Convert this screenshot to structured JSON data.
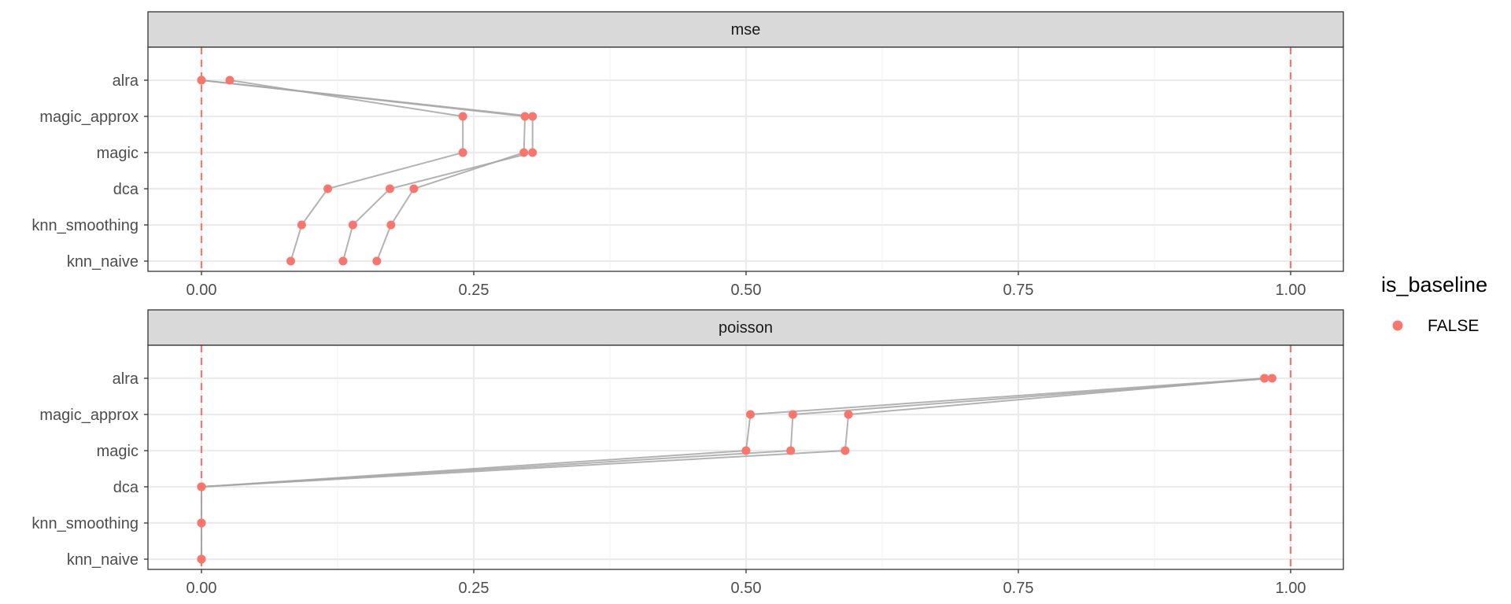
{
  "chart_data": {
    "type": "scatter",
    "title": "",
    "xlabel": "",
    "ylabel": "",
    "xlim": [
      -0.05,
      1.05
    ],
    "x_ticks": [
      "0.00",
      "0.25",
      "0.50",
      "0.75",
      "1.00"
    ],
    "x_tick_values": [
      0,
      0.25,
      0.5,
      0.75,
      1.0
    ],
    "reference_lines_x": [
      0,
      1
    ],
    "grid": true,
    "categories": [
      "alra",
      "magic_approx",
      "magic",
      "dca",
      "knn_smoothing",
      "knn_naive"
    ],
    "legend": {
      "title": "is_baseline",
      "placement": "right",
      "entries": [
        {
          "label": "FALSE",
          "color": "#F8766D"
        }
      ]
    },
    "colors": {
      "point": "#F8766D",
      "line": "#a6a6a6",
      "line_dark": "#6b6b6b",
      "ref_line": "#F8766D",
      "strip_bg": "#d9d9d9",
      "grid": "#ebebeb"
    },
    "panels": [
      {
        "name": "mse",
        "series": [
          {
            "values": {
              "alra": 0.0,
              "magic_approx": 0.297,
              "magic": 0.296,
              "dca": 0.195,
              "knn_smoothing": 0.174,
              "knn_naive": 0.161
            }
          },
          {
            "values": {
              "alra": 0.0,
              "magic_approx": 0.304,
              "magic": 0.304,
              "dca": 0.173,
              "knn_smoothing": 0.139,
              "knn_naive": 0.13
            }
          },
          {
            "values": {
              "alra": 0.026,
              "magic_approx": 0.24,
              "magic": 0.24,
              "dca": 0.116,
              "knn_smoothing": 0.092,
              "knn_naive": 0.082
            }
          }
        ]
      },
      {
        "name": "poisson",
        "series": [
          {
            "values": {
              "alra": 0.976,
              "magic_approx": 0.504,
              "magic": 0.5,
              "dca": 0.0,
              "knn_smoothing": 0.0,
              "knn_naive": 0.0
            }
          },
          {
            "values": {
              "alra": 0.983,
              "magic_approx": 0.543,
              "magic": 0.541,
              "dca": 0.0,
              "knn_smoothing": 0.0,
              "knn_naive": 0.0
            }
          },
          {
            "values": {
              "alra": 0.976,
              "magic_approx": 0.594,
              "magic": 0.591,
              "dca": 0.0,
              "knn_smoothing": 0.0,
              "knn_naive": 0.0
            }
          }
        ]
      }
    ]
  }
}
